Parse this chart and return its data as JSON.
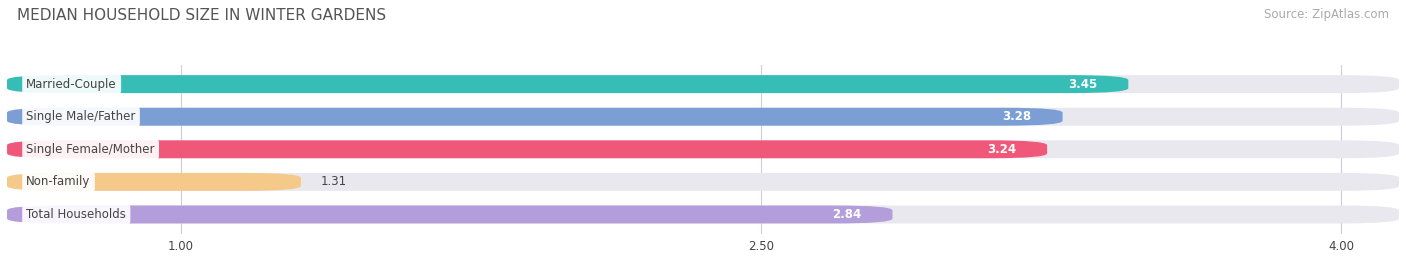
{
  "title": "MEDIAN HOUSEHOLD SIZE IN WINTER GARDENS",
  "source": "Source: ZipAtlas.com",
  "categories": [
    "Married-Couple",
    "Single Male/Father",
    "Single Female/Mother",
    "Non-family",
    "Total Households"
  ],
  "values": [
    3.45,
    3.28,
    3.24,
    1.31,
    2.84
  ],
  "bar_colors": [
    "#36bdb6",
    "#7b9fd4",
    "#f0587a",
    "#f5c98a",
    "#b39ddb"
  ],
  "bar_bg_color": "#e8e8ee",
  "xlim_min": 0.55,
  "xlim_max": 4.15,
  "xticks": [
    1.0,
    2.5,
    4.0
  ],
  "xtick_labels": [
    "1.00",
    "2.50",
    "4.00"
  ],
  "label_color": "#444444",
  "value_color": "#ffffff",
  "title_color": "#555555",
  "source_color": "#aaaaaa",
  "title_fontsize": 11,
  "label_fontsize": 8.5,
  "value_fontsize": 8.5,
  "source_fontsize": 8.5,
  "bar_height": 0.55,
  "background_color": "#ffffff"
}
